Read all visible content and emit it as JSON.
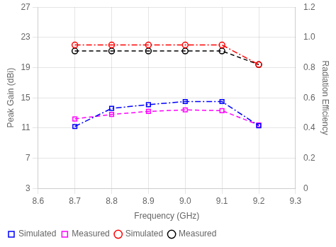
{
  "chart_data": {
    "type": "line",
    "x_label": "Frequency (GHz)",
    "y_label": "Peak Gain (dBi)",
    "y2_label": "Radiation Efficiency",
    "x": [
      8.7,
      8.8,
      8.9,
      9.0,
      9.1,
      9.2
    ],
    "series": [
      {
        "name": "Simulated",
        "color": "#0000ff",
        "marker": "square",
        "line_style": "dashdot",
        "values": [
          11.2,
          13.6,
          14.1,
          14.5,
          14.5,
          11.3
        ]
      },
      {
        "name": "Measured",
        "color": "#ff00ff",
        "marker": "square",
        "line_style": "dashed",
        "values": [
          12.2,
          12.8,
          13.2,
          13.4,
          13.3,
          11.4
        ]
      },
      {
        "name": "Simulated",
        "color": "#ff0000",
        "marker": "circle",
        "line_style": "dashdot",
        "axis": "y2",
        "values": [
          0.95,
          0.95,
          0.95,
          0.95,
          0.95,
          0.82
        ]
      },
      {
        "name": "Measured",
        "color": "#000000",
        "marker": "circle",
        "line_style": "dashed",
        "axis": "y2",
        "values": [
          0.91,
          0.91,
          0.91,
          0.91,
          0.91,
          0.82
        ]
      }
    ],
    "xlim": [
      8.6,
      9.3
    ],
    "xticks": [
      8.6,
      8.7,
      8.8,
      8.9,
      {
        "value": 9.0,
        "label": "9.0"
      },
      9.1,
      9.2,
      9.3
    ],
    "ylim": [
      3,
      27
    ],
    "yticks": [
      3,
      7,
      11,
      15,
      19,
      23,
      27
    ],
    "y2lim": [
      0,
      1.2
    ],
    "y2ticks": [
      0,
      0.2,
      0.4,
      0.6,
      0.8,
      {
        "value": 1.0,
        "label": "1.0"
      },
      1.2
    ],
    "grid": true,
    "legend": "lower left"
  }
}
